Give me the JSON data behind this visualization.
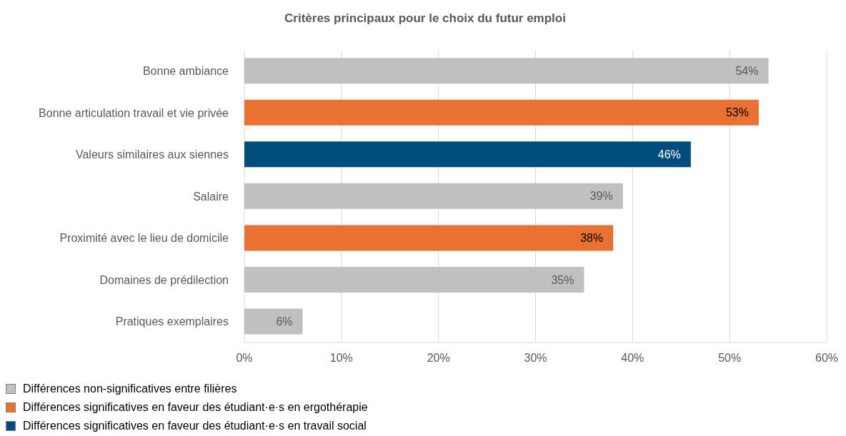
{
  "chart_data": {
    "type": "bar",
    "orientation": "horizontal",
    "stacked": true,
    "title": "Critères principaux pour le choix du futur emploi",
    "categories": [
      "Bonne ambiance",
      "Bonne articulation travail et vie privée",
      "Valeurs similaires aux siennes",
      "Salaire",
      "Proximité avec le lieu de domicile",
      "Domaines de prédilection",
      "Pratiques exemplaires"
    ],
    "series": [
      {
        "name": "Différences non-significatives entre filières",
        "color": "#c0c0c0",
        "values": [
          54,
          null,
          null,
          39,
          null,
          35,
          6
        ],
        "value_labels": [
          "54%",
          null,
          null,
          "39%",
          null,
          "35%",
          "6%"
        ]
      },
      {
        "name": "Différences significatives en faveur des étudiant·e·s en ergothérapie",
        "color": "#e97132",
        "values": [
          null,
          53,
          null,
          null,
          38,
          null,
          null
        ],
        "value_labels": [
          null,
          "53%",
          null,
          null,
          "38%",
          null,
          null
        ]
      },
      {
        "name": "Différences significatives en faveur des étudiant·e·s en travail social",
        "color": "#004c7c",
        "values": [
          null,
          null,
          46,
          null,
          null,
          null,
          null
        ],
        "value_labels": [
          null,
          null,
          "46%",
          null,
          null,
          null,
          null
        ]
      }
    ],
    "xlim": [
      0,
      60
    ],
    "xticks": [
      {
        "value": 0,
        "label": "0%"
      },
      {
        "value": 10,
        "label": "10%"
      },
      {
        "value": 20,
        "label": "20%"
      },
      {
        "value": 30,
        "label": "30%"
      },
      {
        "value": 40,
        "label": "40%"
      },
      {
        "value": 50,
        "label": "50%"
      },
      {
        "value": 60,
        "label": "60%"
      }
    ],
    "grid": "x",
    "legend": "bottom left"
  }
}
